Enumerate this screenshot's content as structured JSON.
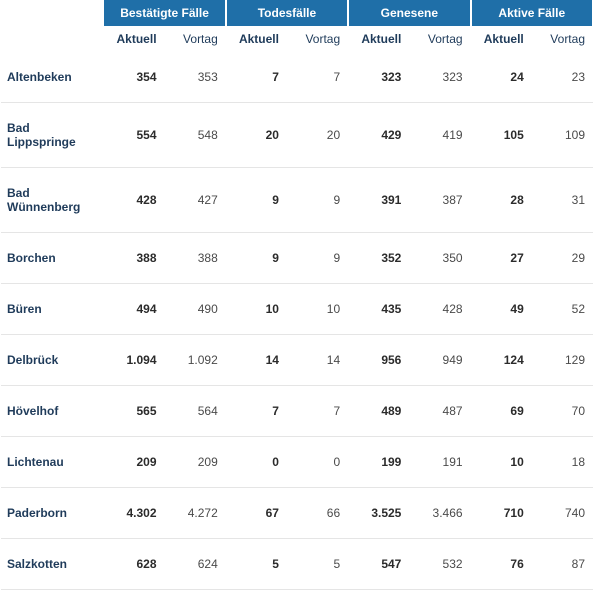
{
  "table": {
    "type": "table",
    "header_bg_color": "#1f6fa8",
    "header_text_color": "#ffffff",
    "row_border_color": "#e5e5e5",
    "name_text_color": "#1f3b5a",
    "value_text_color": "#4a4a4a",
    "aktuell_text_color": "#2b2b2b",
    "font_family": "Arial",
    "header_fontsize": 12,
    "body_fontsize": 12,
    "groups": [
      {
        "label": "Bestätigte Fälle"
      },
      {
        "label": "Todesfälle"
      },
      {
        "label": "Genesene"
      },
      {
        "label": "Aktive Fälle"
      }
    ],
    "sub_labels": {
      "aktuell": "Aktuell",
      "vortag": "Vortag"
    },
    "rows": [
      {
        "name": "Altenbeken",
        "v": [
          "354",
          "353",
          "7",
          "7",
          "323",
          "323",
          "24",
          "23"
        ]
      },
      {
        "name": "Bad Lippspringe",
        "v": [
          "554",
          "548",
          "20",
          "20",
          "429",
          "419",
          "105",
          "109"
        ]
      },
      {
        "name": "Bad Wünnenberg",
        "v": [
          "428",
          "427",
          "9",
          "9",
          "391",
          "387",
          "28",
          "31"
        ]
      },
      {
        "name": "Borchen",
        "v": [
          "388",
          "388",
          "9",
          "9",
          "352",
          "350",
          "27",
          "29"
        ]
      },
      {
        "name": "Büren",
        "v": [
          "494",
          "490",
          "10",
          "10",
          "435",
          "428",
          "49",
          "52"
        ]
      },
      {
        "name": "Delbrück",
        "v": [
          "1.094",
          "1.092",
          "14",
          "14",
          "956",
          "949",
          "124",
          "129"
        ]
      },
      {
        "name": "Hövelhof",
        "v": [
          "565",
          "564",
          "7",
          "7",
          "489",
          "487",
          "69",
          "70"
        ]
      },
      {
        "name": "Lichtenau",
        "v": [
          "209",
          "209",
          "0",
          "0",
          "199",
          "191",
          "10",
          "18"
        ]
      },
      {
        "name": "Paderborn",
        "v": [
          "4.302",
          "4.272",
          "67",
          "66",
          "3.525",
          "3.466",
          "710",
          "740"
        ]
      },
      {
        "name": "Salzkotten",
        "v": [
          "628",
          "624",
          "5",
          "5",
          "547",
          "532",
          "76",
          "87"
        ]
      }
    ]
  }
}
